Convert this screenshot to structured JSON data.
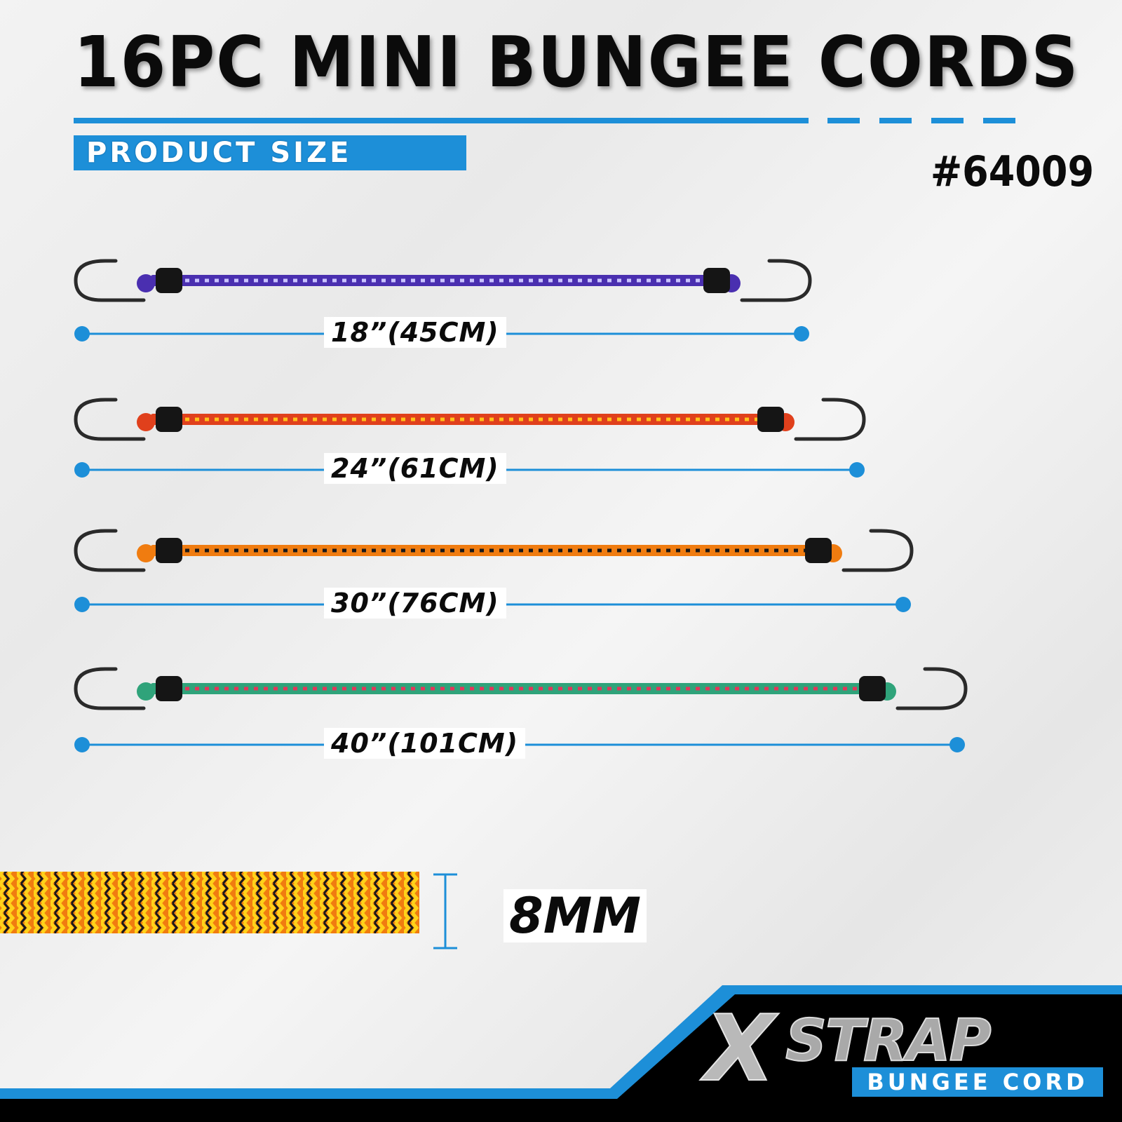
{
  "header": {
    "title": "16PC MINI BUNGEE CORDS",
    "section_label": "PRODUCT SIZE",
    "sku": "#64009"
  },
  "cords": [
    {
      "length_label": "18”(45CM)",
      "colors": [
        "#4a2fb0",
        "#c9c3ff"
      ]
    },
    {
      "length_label": "24”(61CM)",
      "colors": [
        "#e0401c",
        "#ffc21a"
      ]
    },
    {
      "length_label": "30”(76CM)",
      "colors": [
        "#f07c10",
        "#1a1a1a"
      ]
    },
    {
      "length_label": "40”(101CM)",
      "colors": [
        "#2fa37a",
        "#e2365a"
      ]
    }
  ],
  "diameter": {
    "label": "8MM"
  },
  "logo": {
    "brand": "XSTRAP",
    "brand_x": "X",
    "brand_rest": "STRAP",
    "subtitle": "BUNGEE CORD"
  },
  "accent_color": "#1d8fd8"
}
